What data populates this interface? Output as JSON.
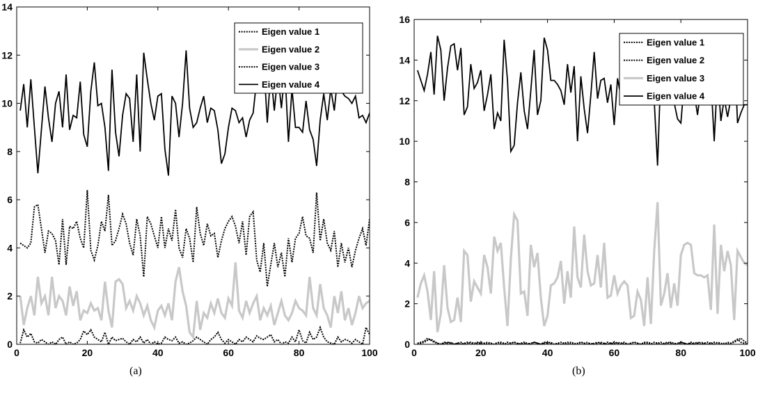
{
  "captions": {
    "a": "(a)",
    "b": "(b)"
  },
  "chart_data": [
    {
      "type": "line",
      "panel": "a",
      "xlim": [
        0,
        100
      ],
      "ylim": [
        0,
        14
      ],
      "xticks": [
        0,
        20,
        40,
        60,
        80,
        100
      ],
      "yticks": [
        0,
        2,
        4,
        6,
        8,
        10,
        12,
        14
      ],
      "legend_position": "top-right",
      "grid": false,
      "x": [
        1,
        2,
        3,
        4,
        5,
        6,
        7,
        8,
        9,
        10,
        11,
        12,
        13,
        14,
        15,
        16,
        17,
        18,
        19,
        20,
        21,
        22,
        23,
        24,
        25,
        26,
        27,
        28,
        29,
        30,
        31,
        32,
        33,
        34,
        35,
        36,
        37,
        38,
        39,
        40,
        41,
        42,
        43,
        44,
        45,
        46,
        47,
        48,
        49,
        50,
        51,
        52,
        53,
        54,
        55,
        56,
        57,
        58,
        59,
        60,
        61,
        62,
        63,
        64,
        65,
        66,
        67,
        68,
        69,
        70,
        71,
        72,
        73,
        74,
        75,
        76,
        77,
        78,
        79,
        80,
        81,
        82,
        83,
        84,
        85,
        86,
        87,
        88,
        89,
        90,
        91,
        92,
        93,
        94,
        95,
        96,
        97,
        98,
        99,
        100
      ],
      "series": [
        {
          "name": "Eigen value 1",
          "color": "#000000",
          "style": "dotted",
          "values": [
            0.05,
            0.6,
            0.3,
            0.45,
            0.1,
            0.05,
            0.2,
            0.1,
            0.0,
            0.1,
            0.0,
            0.2,
            0.3,
            0.0,
            0.1,
            0.0,
            0.05,
            0.2,
            0.55,
            0.4,
            0.6,
            0.3,
            0.2,
            0.1,
            0.5,
            0.0,
            0.3,
            0.15,
            0.2,
            0.25,
            0.1,
            0.0,
            0.2,
            0.1,
            0.3,
            0.05,
            0.2,
            0.0,
            0.1,
            0.0,
            0.05,
            0.3,
            0.2,
            0.15,
            0.3,
            0.05,
            0.1,
            0.0,
            0.05,
            0.15,
            0.3,
            0.2,
            0.1,
            0.0,
            0.2,
            0.3,
            0.5,
            0.2,
            0.05,
            0.2,
            0.1,
            0.0,
            0.2,
            0.1,
            0.3,
            0.2,
            0.1,
            0.35,
            0.25,
            0.2,
            0.3,
            0.4,
            0.1,
            0.2,
            0.0,
            0.1,
            0.05,
            0.3,
            0.1,
            0.6,
            0.15,
            0.05,
            0.5,
            0.2,
            0.3,
            0.7,
            0.3,
            0.1,
            0.05,
            0.0,
            0.3,
            0.1,
            0.2,
            0.15,
            0.05,
            0.2,
            0.1,
            0.0,
            0.7,
            0.4
          ]
        },
        {
          "name": "Eigen value 2",
          "color": "#c8c8c8",
          "style": "solid-thick",
          "values": [
            2.0,
            0.8,
            1.5,
            2.0,
            1.2,
            2.8,
            1.7,
            2.0,
            1.2,
            2.8,
            1.5,
            2.0,
            1.8,
            1.2,
            2.4,
            1.6,
            2.2,
            1.0,
            1.4,
            1.3,
            1.7,
            1.4,
            1.5,
            1.0,
            2.6,
            1.4,
            0.7,
            2.6,
            2.7,
            2.5,
            1.5,
            1.8,
            1.4,
            2.0,
            1.7,
            1.2,
            1.6,
            1.0,
            0.7,
            1.4,
            1.6,
            1.2,
            1.7,
            1.0,
            2.6,
            3.2,
            2.2,
            1.6,
            0.5,
            0.3,
            1.8,
            0.6,
            1.3,
            1.1,
            1.7,
            1.3,
            1.9,
            1.3,
            1.1,
            1.9,
            1.6,
            3.4,
            1.4,
            1.1,
            1.8,
            1.3,
            1.7,
            2.0,
            1.0,
            1.5,
            1.2,
            1.6,
            0.8,
            1.3,
            1.8,
            1.2,
            1.0,
            1.3,
            1.8,
            1.5,
            1.4,
            1.2,
            2.8,
            1.5,
            1.2,
            2.5,
            1.5,
            1.2,
            0.7,
            2.0,
            1.3,
            2.2,
            1.0,
            1.5,
            0.8,
            1.3,
            2.0,
            1.5,
            1.7,
            1.8
          ]
        },
        {
          "name": "Eigen value 3",
          "color": "#000000",
          "style": "dotted",
          "values": [
            4.2,
            4.1,
            4.0,
            4.2,
            5.7,
            5.8,
            4.8,
            3.8,
            4.7,
            4.6,
            4.3,
            3.3,
            5.2,
            3.3,
            4.9,
            4.8,
            5.1,
            4.4,
            4.0,
            6.4,
            3.9,
            3.5,
            4.1,
            5.1,
            4.7,
            6.2,
            4.1,
            4.3,
            4.8,
            5.4,
            5.0,
            4.2,
            3.7,
            5.2,
            4.5,
            2.8,
            5.3,
            5.0,
            4.5,
            4.0,
            5.3,
            4.0,
            4.8,
            4.3,
            5.6,
            4.0,
            3.6,
            4.8,
            4.4,
            3.4,
            5.7,
            4.6,
            4.1,
            5.0,
            4.5,
            4.6,
            3.6,
            4.3,
            4.8,
            5.1,
            5.3,
            4.9,
            4.2,
            5.1,
            3.7,
            5.3,
            5.5,
            3.5,
            3.0,
            4.2,
            2.4,
            3.3,
            4.2,
            3.2,
            3.8,
            2.8,
            4.4,
            3.4,
            4.4,
            4.6,
            5.3,
            4.5,
            4.4,
            3.8,
            6.3,
            4.3,
            5.2,
            4.2,
            3.9,
            4.7,
            3.2,
            4.2,
            3.4,
            4.0,
            3.2,
            3.9,
            4.4,
            4.8,
            4.1,
            5.2
          ]
        },
        {
          "name": "Eigen value 4",
          "color": "#000000",
          "style": "solid",
          "values": [
            9.7,
            10.8,
            9.0,
            11.0,
            9.0,
            7.1,
            8.9,
            10.7,
            9.4,
            8.4,
            10.0,
            10.5,
            9.0,
            11.2,
            8.9,
            9.5,
            9.4,
            10.9,
            8.7,
            8.2,
            10.5,
            11.7,
            9.9,
            10.0,
            9.0,
            7.2,
            11.4,
            8.8,
            7.8,
            9.5,
            10.4,
            10.2,
            8.4,
            11.2,
            8.0,
            12.1,
            11.0,
            10.0,
            9.3,
            10.3,
            10.4,
            8.1,
            7.0,
            10.3,
            10.0,
            8.6,
            10.0,
            12.2,
            9.8,
            9.0,
            9.2,
            9.8,
            10.3,
            9.2,
            9.8,
            9.7,
            8.9,
            7.5,
            7.9,
            9.0,
            9.8,
            9.7,
            9.2,
            9.4,
            8.6,
            9.3,
            9.6,
            11.0,
            11.3,
            11.7,
            9.2,
            11.3,
            9.7,
            11.2,
            9.8,
            11.4,
            8.4,
            10.6,
            9.0,
            9.0,
            8.8,
            10.1,
            8.9,
            8.5,
            7.4,
            9.3,
            10.4,
            9.3,
            10.6,
            9.7,
            11.2,
            10.5,
            10.3,
            10.2,
            10.0,
            10.3,
            9.4,
            9.5,
            9.2,
            9.6
          ]
        }
      ]
    },
    {
      "type": "line",
      "panel": "b",
      "xlim": [
        0,
        100
      ],
      "ylim": [
        0,
        16
      ],
      "xticks": [
        0,
        20,
        40,
        60,
        80,
        100
      ],
      "yticks": [
        0,
        2,
        4,
        6,
        8,
        10,
        12,
        14,
        16
      ],
      "legend_position": "top-right",
      "grid": false,
      "x": [
        1,
        2,
        3,
        4,
        5,
        6,
        7,
        8,
        9,
        10,
        11,
        12,
        13,
        14,
        15,
        16,
        17,
        18,
        19,
        20,
        21,
        22,
        23,
        24,
        25,
        26,
        27,
        28,
        29,
        30,
        31,
        32,
        33,
        34,
        35,
        36,
        37,
        38,
        39,
        40,
        41,
        42,
        43,
        44,
        45,
        46,
        47,
        48,
        49,
        50,
        51,
        52,
        53,
        54,
        55,
        56,
        57,
        58,
        59,
        60,
        61,
        62,
        63,
        64,
        65,
        66,
        67,
        68,
        69,
        70,
        71,
        72,
        73,
        74,
        75,
        76,
        77,
        78,
        79,
        80,
        81,
        82,
        83,
        84,
        85,
        86,
        87,
        88,
        89,
        90,
        91,
        92,
        93,
        94,
        95,
        96,
        97,
        98,
        99,
        100
      ],
      "series": [
        {
          "name": "Eigen value 1",
          "color": "#000000",
          "style": "dotted",
          "values": [
            0.05,
            0.1,
            0.15,
            0.3,
            0.2,
            0.1,
            0.05,
            0.0,
            0.1,
            0.05,
            0.1,
            0.0,
            0.05,
            0.1,
            0.0,
            0.05,
            0.1,
            0.05,
            0.1,
            0.0,
            0.05,
            0.1,
            0.05,
            0.0,
            0.1,
            0.05,
            0.0,
            0.1,
            0.05,
            0.1,
            0.0,
            0.05,
            0.1,
            0.05,
            0.0,
            0.1,
            0.05,
            0.0,
            0.1,
            0.05,
            0.1,
            0.0,
            0.05,
            0.1,
            0.05,
            0.0,
            0.1,
            0.05,
            0.0,
            0.1,
            0.05,
            0.1,
            0.0,
            0.05,
            0.1,
            0.05,
            0.0,
            0.1,
            0.05,
            0.0,
            0.1,
            0.05,
            0.1,
            0.0,
            0.05,
            0.1,
            0.05,
            0.0,
            0.1,
            0.05,
            0.0,
            0.1,
            0.05,
            0.1,
            0.0,
            0.05,
            0.1,
            0.05,
            0.0,
            0.1,
            0.05,
            0.0,
            0.1,
            0.05,
            0.1,
            0.0,
            0.05,
            0.1,
            0.05,
            0.0,
            0.1,
            0.05,
            0.0,
            0.1,
            0.05,
            0.1,
            0.2,
            0.3,
            0.15,
            0.05
          ]
        },
        {
          "name": "Eigen value 2",
          "color": "#000000",
          "style": "dotted",
          "values": [
            0.0,
            0.05,
            0.1,
            0.2,
            0.25,
            0.15,
            0.05,
            0.0,
            0.05,
            0.1,
            0.05,
            0.0,
            0.05,
            0.0,
            0.05,
            0.1,
            0.05,
            0.0,
            0.05,
            0.1,
            0.05,
            0.0,
            0.05,
            0.0,
            0.05,
            0.1,
            0.05,
            0.0,
            0.05,
            0.1,
            0.05,
            0.0,
            0.05,
            0.0,
            0.05,
            0.1,
            0.05,
            0.0,
            0.05,
            0.1,
            0.05,
            0.0,
            0.05,
            0.0,
            0.05,
            0.1,
            0.05,
            0.0,
            0.05,
            0.1,
            0.05,
            0.0,
            0.05,
            0.0,
            0.05,
            0.1,
            0.05,
            0.0,
            0.05,
            0.1,
            0.05,
            0.0,
            0.05,
            0.0,
            0.05,
            0.1,
            0.05,
            0.0,
            0.05,
            0.1,
            0.05,
            0.0,
            0.05,
            0.0,
            0.05,
            0.1,
            0.05,
            0.0,
            0.05,
            0.1,
            0.05,
            0.0,
            0.05,
            0.0,
            0.05,
            0.1,
            0.05,
            0.0,
            0.05,
            0.1,
            0.05,
            0.0,
            0.05,
            0.0,
            0.05,
            0.15,
            0.25,
            0.1,
            0.05,
            0.0
          ]
        },
        {
          "name": "Eigen value 3",
          "color": "#c8c8c8",
          "style": "solid-thick",
          "values": [
            2.3,
            3.0,
            3.4,
            2.6,
            1.2,
            3.6,
            0.6,
            1.5,
            3.9,
            1.8,
            1.1,
            1.2,
            2.3,
            1.1,
            4.6,
            4.4,
            2.1,
            3.1,
            2.8,
            2.5,
            4.4,
            3.8,
            2.5,
            5.3,
            4.6,
            5.0,
            2.8,
            0.9,
            4.2,
            6.4,
            6.1,
            2.5,
            2.6,
            1.4,
            4.9,
            3.8,
            4.5,
            2.3,
            0.9,
            1.4,
            2.9,
            3.0,
            3.3,
            4.1,
            2.0,
            3.6,
            2.3,
            5.8,
            3.3,
            2.8,
            5.4,
            3.6,
            2.9,
            3.0,
            4.4,
            2.8,
            5.0,
            2.3,
            2.4,
            3.4,
            2.5,
            2.9,
            3.1,
            2.9,
            1.3,
            1.4,
            2.6,
            2.2,
            0.9,
            3.3,
            1.0,
            4.6,
            7.0,
            1.9,
            2.5,
            3.5,
            1.8,
            3.0,
            1.9,
            4.4,
            4.9,
            5.0,
            4.9,
            3.5,
            3.4,
            3.4,
            3.3,
            3.4,
            1.7,
            5.9,
            1.5,
            4.9,
            3.6,
            4.6,
            3.9,
            1.2,
            4.6,
            4.3,
            4.0,
            3.9
          ]
        },
        {
          "name": "Eigen value 4",
          "color": "#000000",
          "style": "solid",
          "values": [
            13.5,
            13.0,
            12.5,
            13.3,
            14.4,
            12.3,
            15.2,
            14.5,
            12.0,
            13.6,
            14.7,
            14.8,
            13.5,
            14.6,
            11.3,
            11.7,
            13.8,
            12.6,
            12.9,
            13.5,
            11.5,
            12.3,
            13.3,
            10.6,
            11.4,
            11.0,
            15.0,
            13.0,
            9.5,
            9.8,
            11.9,
            13.4,
            11.5,
            10.6,
            12.5,
            14.5,
            11.3,
            12.0,
            15.1,
            14.5,
            13.0,
            13.0,
            12.8,
            12.5,
            11.8,
            13.8,
            12.4,
            13.7,
            10.0,
            13.2,
            11.6,
            10.4,
            12.3,
            14.4,
            12.1,
            13.0,
            13.1,
            11.9,
            12.8,
            10.8,
            13.1,
            12.2,
            13.6,
            12.1,
            13.3,
            12.1,
            14.2,
            14.2,
            12.3,
            12.0,
            14.0,
            12.0,
            8.8,
            13.6,
            12.4,
            12.1,
            13.2,
            11.9,
            11.1,
            10.9,
            12.9,
            12.2,
            13.8,
            12.4,
            11.3,
            12.6,
            11.9,
            12.7,
            13.1,
            10.0,
            13.3,
            11.0,
            12.1,
            11.2,
            12.1,
            14.8,
            10.9,
            11.4,
            11.8,
            11.8
          ]
        }
      ]
    }
  ]
}
